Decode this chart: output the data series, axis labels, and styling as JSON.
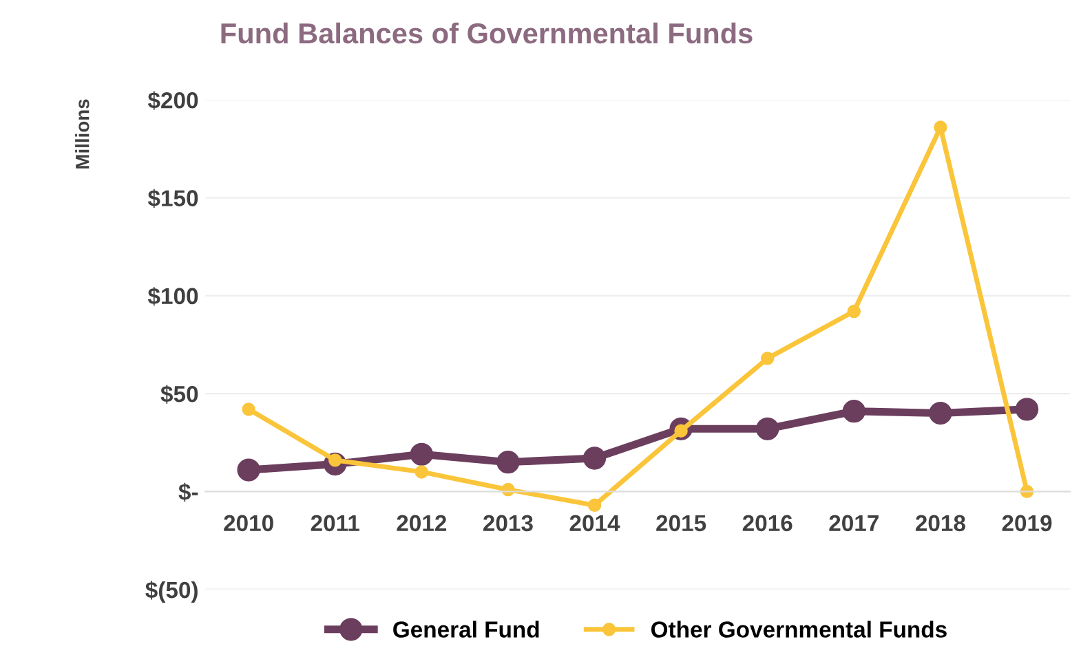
{
  "chart_data": {
    "type": "line",
    "title": "Fund Balances of Governmental Funds",
    "ylabel": "Millions",
    "categories": [
      "2010",
      "2011",
      "2012",
      "2013",
      "2014",
      "2015",
      "2016",
      "2017",
      "2018",
      "2019"
    ],
    "series": [
      {
        "name": "General Fund",
        "color": "#6b3e5e",
        "values": [
          11,
          14,
          19,
          15,
          17,
          32,
          32,
          41,
          40,
          42
        ]
      },
      {
        "name": "Other Governmental Funds",
        "color": "#fac53a",
        "values": [
          42,
          16,
          10,
          1,
          -7,
          31,
          68,
          92,
          186,
          0
        ]
      }
    ],
    "ylim": [
      -50,
      200
    ],
    "yticks": [
      {
        "value": -50,
        "label": "$(50)"
      },
      {
        "value": 0,
        "label": "$-"
      },
      {
        "value": 50,
        "label": "$50"
      },
      {
        "value": 100,
        "label": "$100"
      },
      {
        "value": 150,
        "label": "$150"
      },
      {
        "value": 200,
        "label": "$200"
      }
    ],
    "grid": "y",
    "legend": "bottom",
    "marker": "circle"
  }
}
